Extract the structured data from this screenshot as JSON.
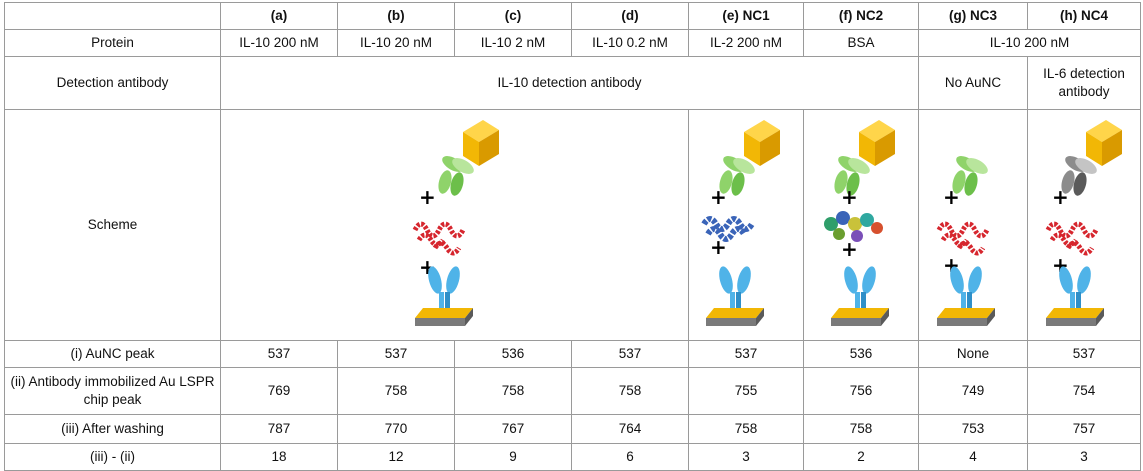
{
  "columns": {
    "a": "(a)",
    "b": "(b)",
    "c": "(c)",
    "d": "(d)",
    "e": "(e) NC1",
    "f": "(f) NC2",
    "g": "(g) NC3",
    "h": "(h) NC4"
  },
  "rows": {
    "protein": {
      "label": "Protein",
      "a": "IL-10 200 nM",
      "b": "IL-10 20 nM",
      "c": "IL-10 2 nM",
      "d": "IL-10 0.2 nM",
      "e": "IL-2 200 nM",
      "f": "BSA",
      "gh": "IL-10 200 nM"
    },
    "detection": {
      "label": "Detection antibody",
      "af": "IL-10 detection antibody",
      "g": "No AuNC",
      "h": "IL-6 detection antibody"
    },
    "scheme": {
      "label": "Scheme"
    },
    "auNC": {
      "label": "(i)  AuNC peak",
      "values": [
        "537",
        "537",
        "536",
        "537",
        "537",
        "536",
        "None",
        "537"
      ]
    },
    "antibody": {
      "label": "(ii)  Antibody immobilized Au LSPR chip peak",
      "values": [
        "769",
        "758",
        "758",
        "758",
        "755",
        "756",
        "749",
        "754"
      ]
    },
    "washing": {
      "label": "(iii)  After washing",
      "values": [
        "787",
        "770",
        "767",
        "764",
        "758",
        "758",
        "753",
        "757"
      ]
    },
    "diff": {
      "label": "(iii) - (ii)",
      "values": [
        "18",
        "12",
        "9",
        "6",
        "3",
        "2",
        "4",
        "3"
      ]
    }
  },
  "colors": {
    "cube": "#f2b705",
    "detection_ab": "#8fd36a",
    "capture_ab": "#4fb3e8",
    "il10": "#d6262e",
    "il2": "#3a64b8",
    "il6_ab": "#8c8c8c",
    "chip": "#f2b705"
  }
}
